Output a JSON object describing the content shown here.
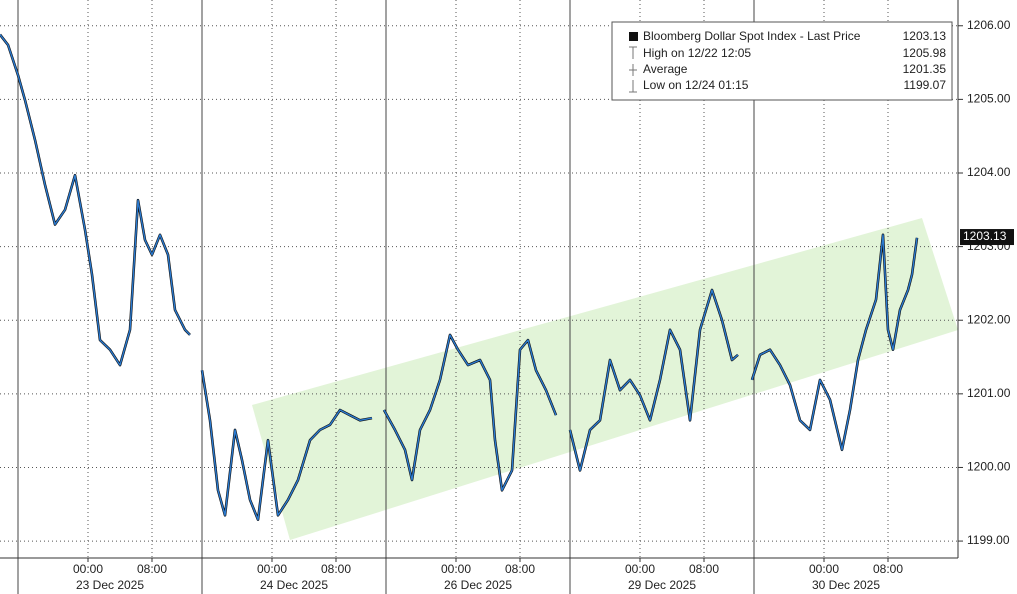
{
  "chart_data": {
    "type": "line",
    "legend": {
      "title": "Bloomberg Dollar Spot Index - Last Price",
      "last": 1203.13,
      "rows": [
        {
          "label": "High on 12/22 12:05",
          "value": 1205.98
        },
        {
          "label": "Average",
          "value": 1201.35
        },
        {
          "label": "Low on 12/24 01:15",
          "value": 1199.07
        }
      ]
    },
    "series": [
      {
        "name": "Bloomberg Dollar Spot Index",
        "color": "#2a7ad0",
        "x": [
          0,
          1,
          2.25,
          3.125,
          4.375,
          5.625,
          6.875,
          8.125,
          9.375,
          10.625,
          11.5,
          12.5,
          13.75,
          15,
          16.25,
          17.25,
          18.125,
          19,
          20,
          21,
          21.875,
          23.125,
          23.75,
          24.375,
          25.25,
          26.25,
          27.25,
          28.125,
          29.375,
          30.25,
          31.25,
          32.25,
          33.5,
          34.75,
          36,
          37.25,
          38.75,
          40,
          41.25,
          42.5,
          43.75,
          45,
          46.5,
          47.25,
          48,
          49.375,
          50.625,
          51.5,
          52.5,
          53.75,
          55,
          56.25,
          57.25,
          58.5,
          60,
          61.25,
          61.875,
          62.75,
          64,
          65,
          66,
          67,
          68.25,
          69.5,
          70.125,
          71.25,
          72.5,
          73.75,
          75,
          76.25,
          77.5,
          78.75,
          80,
          81.25,
          82.5,
          83.75,
          85,
          86.25,
          87.5,
          89,
          90.25,
          91.5,
          92.25,
          93,
          94,
          95,
          96.25,
          97.5,
          98.75,
          100,
          101.25,
          102.5,
          103.75,
          105.25,
          106.25,
          107.25,
          108.25,
          109.5,
          110.375,
          111,
          111.625,
          112.5,
          113.5,
          114,
          114.625
        ],
        "values": [
          1205.88,
          1205.74,
          1205.33,
          1204.99,
          1204.45,
          1203.84,
          1203.3,
          1203.5,
          1203.97,
          1203.23,
          1202.62,
          1201.73,
          1201.6,
          1201.39,
          1201.87,
          1203.63,
          1203.09,
          1202.89,
          1203.16,
          1202.89,
          1202.14,
          1201.87,
          1201.8,
          null,
          1201.32,
          1200.64,
          1199.69,
          1199.35,
          1200.51,
          1200.1,
          1199.56,
          1199.29,
          1200.37,
          1199.35,
          1199.56,
          1199.83,
          1200.37,
          1200.51,
          1200.58,
          1200.78,
          1200.71,
          1200.64,
          1200.67,
          null,
          1200.78,
          1200.51,
          1200.24,
          1199.83,
          1200.51,
          1200.78,
          1201.19,
          1201.8,
          1201.6,
          1201.39,
          1201.46,
          1201.19,
          1200.37,
          1199.69,
          1199.96,
          1201.6,
          1201.73,
          1201.32,
          1201.05,
          1200.71,
          null,
          1200.51,
          1199.96,
          1200.51,
          1200.64,
          1201.46,
          1201.05,
          1201.19,
          1200.98,
          1200.64,
          1201.19,
          1201.87,
          1201.6,
          1200.64,
          1201.87,
          1202.41,
          1202.0,
          1201.46,
          1201.53,
          null,
          1201.19,
          1201.53,
          1201.6,
          1201.39,
          1201.12,
          1200.64,
          1200.51,
          1201.19,
          1200.92,
          1200.24,
          1200.78,
          1201.46,
          1201.87,
          1202.28,
          1203.16,
          1201.87,
          1201.6,
          1202.14,
          1202.41,
          1202.62,
          1203.12
        ]
      }
    ],
    "xlim": [
      0,
      119.75
    ],
    "xticks": [
      {
        "value": 11,
        "label": "00:00"
      },
      {
        "value": 19,
        "label": "08:00"
      },
      {
        "value": 34,
        "label": "00:00"
      },
      {
        "value": 42,
        "label": "08:00"
      },
      {
        "value": 57,
        "label": "00:00"
      },
      {
        "value": 65,
        "label": "08:00"
      },
      {
        "value": 80,
        "label": "00:00"
      },
      {
        "value": 88,
        "label": "08:00"
      },
      {
        "value": 103,
        "label": "00:00"
      },
      {
        "value": 111,
        "label": "08:00"
      }
    ],
    "day_separators": [
      2.25,
      25.25,
      48.25,
      71.25,
      94.25
    ],
    "date_labels": [
      {
        "value": 13.75,
        "label": "23 Dec 2025"
      },
      {
        "value": 36.75,
        "label": "24 Dec 2025"
      },
      {
        "value": 59.75,
        "label": "26 Dec 2025"
      },
      {
        "value": 82.75,
        "label": "29 Dec 2025"
      },
      {
        "value": 105.75,
        "label": "30 Dec 2025"
      }
    ],
    "ylim": [
      1198.77,
      1206.35
    ],
    "yticks": [
      {
        "value": 1199,
        "label": "1199.00"
      },
      {
        "value": 1200,
        "label": "1200.00"
      },
      {
        "value": 1201,
        "label": "1201.00"
      },
      {
        "value": 1202,
        "label": "1202.00"
      },
      {
        "value": 1203,
        "label": "1203.00"
      },
      {
        "value": 1204,
        "label": "1204.00"
      },
      {
        "value": 1205,
        "label": "1205.00"
      },
      {
        "value": 1206,
        "label": "1206.00"
      }
    ],
    "grid": true
  }
}
